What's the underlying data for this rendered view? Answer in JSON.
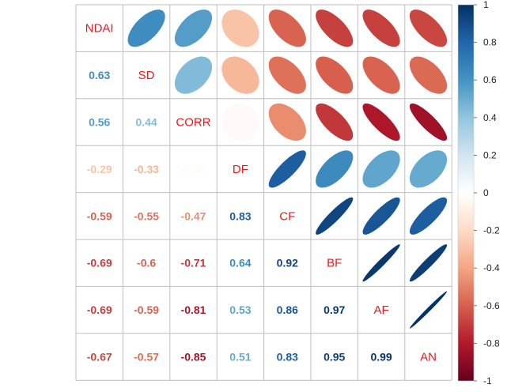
{
  "chart_data": {
    "type": "heatmap",
    "subtype": "correlation-matrix",
    "layout": "upper-ellipse, lower-number, diagonal-label",
    "variables": [
      "NDAI",
      "SD",
      "CORR",
      "DF",
      "CF",
      "BF",
      "AF",
      "AN"
    ],
    "matrix": [
      [
        1,
        0.63,
        0.56,
        -0.29,
        -0.59,
        -0.69,
        -0.69,
        -0.67
      ],
      [
        0.63,
        1,
        0.44,
        -0.33,
        -0.55,
        -0.6,
        -0.59,
        -0.57
      ],
      [
        0.56,
        0.44,
        1,
        -0.03,
        -0.47,
        -0.71,
        -0.81,
        -0.85
      ],
      [
        -0.29,
        -0.33,
        -0.03,
        1,
        0.83,
        0.64,
        0.53,
        0.51
      ],
      [
        -0.59,
        -0.55,
        -0.47,
        0.83,
        1,
        0.92,
        0.86,
        0.83
      ],
      [
        -0.69,
        -0.6,
        -0.71,
        0.64,
        0.92,
        1,
        0.97,
        0.95
      ],
      [
        -0.69,
        -0.59,
        -0.81,
        0.53,
        0.86,
        0.97,
        1,
        0.99
      ],
      [
        -0.67,
        -0.57,
        -0.85,
        0.51,
        0.83,
        0.95,
        0.99,
        1
      ]
    ],
    "lower_labels": [
      [
        "",
        "",
        "",
        "",
        "",
        "",
        "",
        ""
      ],
      [
        "0.63",
        "",
        "",
        "",
        "",
        "",
        "",
        ""
      ],
      [
        "0.56",
        "0.44",
        "",
        "",
        "",
        "",
        "",
        ""
      ],
      [
        "-0.29",
        "-0.33",
        "-0.03",
        "",
        "",
        "",
        "",
        ""
      ],
      [
        "-0.59",
        "-0.55",
        "-0.47",
        "0.83",
        "",
        "",
        "",
        ""
      ],
      [
        "-0.69",
        "-0.6",
        "-0.71",
        "0.64",
        "0.92",
        "",
        "",
        ""
      ],
      [
        "-0.69",
        "-0.59",
        "-0.81",
        "0.53",
        "0.86",
        "0.97",
        "",
        ""
      ],
      [
        "-0.67",
        "-0.57",
        "-0.85",
        "0.51",
        "0.83",
        "0.95",
        "0.99",
        ""
      ]
    ],
    "colorbar": {
      "range": [
        -1,
        1
      ],
      "ticks": [
        "1",
        "0.8",
        "0.6",
        "0.4",
        "0.2",
        "0",
        "-0.2",
        "-0.4",
        "-0.6",
        "-0.8",
        "-1"
      ]
    },
    "colors": {
      "negative_end": "#67001f",
      "positive_end": "#053061",
      "diagonal_label": "#e8191c",
      "grid": "#bebebe"
    }
  }
}
